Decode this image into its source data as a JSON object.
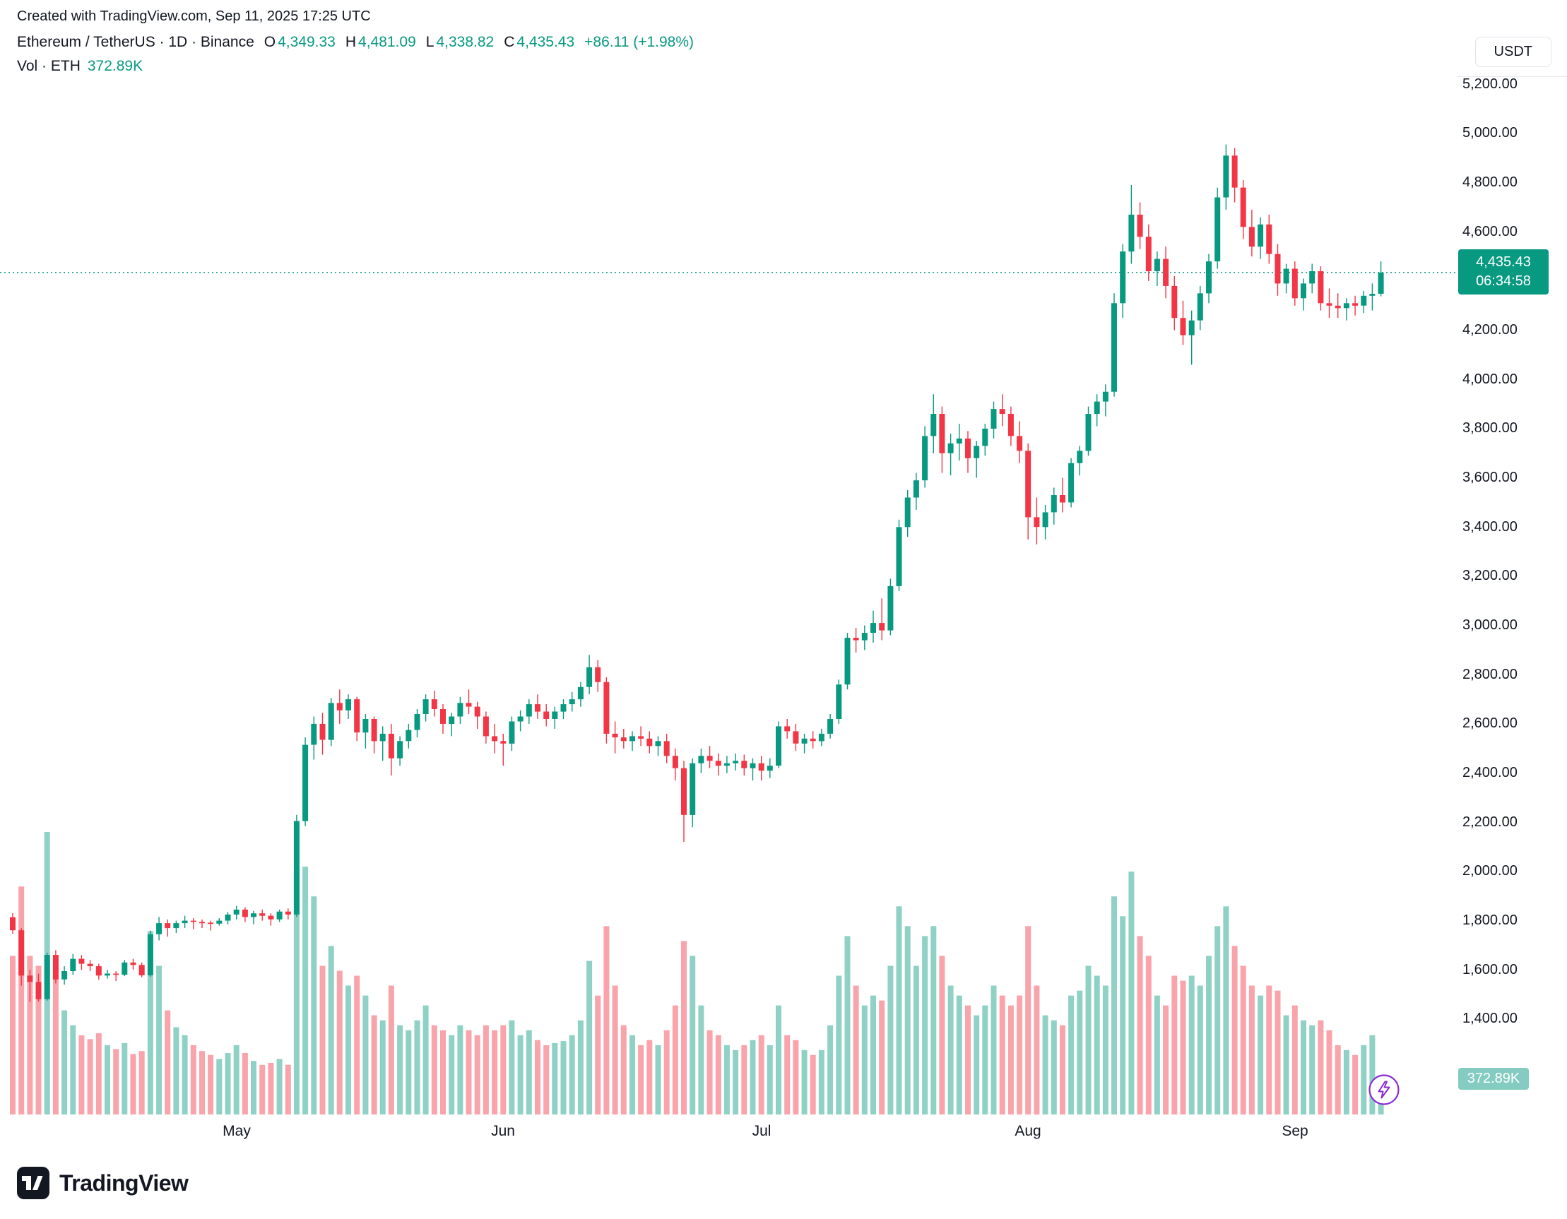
{
  "header": {
    "attribution": "Created with TradingView.com, Sep 11, 2025 17:25 UTC"
  },
  "legend": {
    "symbol_line": "Ethereum / TetherUS · 1D · Binance",
    "o_label": "O",
    "o_value": "4,349.33",
    "h_label": "H",
    "h_value": "4,481.09",
    "l_label": "L",
    "l_value": "4,338.82",
    "c_label": "C",
    "c_value": "4,435.43",
    "change": "+86.11 (+1.98%)",
    "vol_label": "Vol · ETH",
    "vol_value": "372.89K"
  },
  "axis": {
    "currency_button": "USDT",
    "price_badge": {
      "price": "4,435.43",
      "countdown": "06:34:58",
      "value": 4435.43
    },
    "volume_badge": "372.89K",
    "price_ticks": [
      {
        "label": "5,200.00",
        "value": 5200
      },
      {
        "label": "5,000.00",
        "value": 5000
      },
      {
        "label": "4,800.00",
        "value": 4800
      },
      {
        "label": "4,600.00",
        "value": 4600
      },
      {
        "label": "4,200.00",
        "value": 4200
      },
      {
        "label": "4,000.00",
        "value": 4000
      },
      {
        "label": "3,800.00",
        "value": 3800
      },
      {
        "label": "3,600.00",
        "value": 3600
      },
      {
        "label": "3,400.00",
        "value": 3400
      },
      {
        "label": "3,200.00",
        "value": 3200
      },
      {
        "label": "3,000.00",
        "value": 3000
      },
      {
        "label": "2,800.00",
        "value": 2800
      },
      {
        "label": "2,600.00",
        "value": 2600
      },
      {
        "label": "2,400.00",
        "value": 2400
      },
      {
        "label": "2,200.00",
        "value": 2200
      },
      {
        "label": "2,000.00",
        "value": 2000
      },
      {
        "label": "1,800.00",
        "value": 1800
      },
      {
        "label": "1,600.00",
        "value": 1600
      },
      {
        "label": "1,400.00",
        "value": 1400
      }
    ]
  },
  "chart_data": {
    "type": "candlestick",
    "symbol": "ETHUSDT",
    "interval": "1D",
    "ylim": [
      1400,
      5200
    ],
    "last_price": 4435.43,
    "x_ticks": [
      {
        "label": "May",
        "index": 26
      },
      {
        "label": "Jun",
        "index": 57
      },
      {
        "label": "Jul",
        "index": 87
      },
      {
        "label": "Aug",
        "index": 118
      },
      {
        "label": "Sep",
        "index": 149
      }
    ],
    "candles_format": [
      "open",
      "high",
      "low",
      "close",
      "volume_k_eth"
    ],
    "candles": [
      [
        1815,
        1832,
        1748,
        1762,
        1600
      ],
      [
        1762,
        1771,
        1537,
        1578,
        2300
      ],
      [
        1578,
        1601,
        1470,
        1552,
        1600
      ],
      [
        1552,
        1586,
        1472,
        1482,
        1500
      ],
      [
        1482,
        1671,
        1476,
        1662,
        2850
      ],
      [
        1662,
        1681,
        1546,
        1562,
        1400
      ],
      [
        1562,
        1616,
        1541,
        1596,
        1050
      ],
      [
        1596,
        1666,
        1581,
        1646,
        900
      ],
      [
        1646,
        1661,
        1601,
        1626,
        800
      ],
      [
        1626,
        1641,
        1596,
        1616,
        760
      ],
      [
        1616,
        1626,
        1561,
        1578,
        820
      ],
      [
        1578,
        1601,
        1566,
        1586,
        700
      ],
      [
        1586,
        1596,
        1556,
        1581,
        660
      ],
      [
        1581,
        1641,
        1576,
        1631,
        720
      ],
      [
        1631,
        1646,
        1601,
        1621,
        610
      ],
      [
        1621,
        1631,
        1571,
        1579,
        640
      ],
      [
        1579,
        1761,
        1573,
        1746,
        1850
      ],
      [
        1746,
        1816,
        1721,
        1791,
        1500
      ],
      [
        1791,
        1806,
        1736,
        1771,
        1050
      ],
      [
        1771,
        1801,
        1751,
        1791,
        880
      ],
      [
        1791,
        1821,
        1771,
        1801,
        800
      ],
      [
        1801,
        1811,
        1766,
        1796,
        700
      ],
      [
        1796,
        1806,
        1771,
        1793,
        640
      ],
      [
        1793,
        1801,
        1761,
        1789,
        600
      ],
      [
        1789,
        1811,
        1781,
        1801,
        560
      ],
      [
        1801,
        1836,
        1786,
        1826,
        620
      ],
      [
        1826,
        1861,
        1806,
        1846,
        700
      ],
      [
        1846,
        1856,
        1796,
        1816,
        620
      ],
      [
        1816,
        1841,
        1786,
        1831,
        540
      ],
      [
        1831,
        1846,
        1801,
        1821,
        500
      ],
      [
        1821,
        1831,
        1781,
        1806,
        520
      ],
      [
        1806,
        1846,
        1796,
        1838,
        560
      ],
      [
        1838,
        1851,
        1806,
        1826,
        500
      ],
      [
        1826,
        2231,
        1816,
        2206,
        2400
      ],
      [
        2206,
        2546,
        2186,
        2516,
        2500
      ],
      [
        2516,
        2631,
        2456,
        2601,
        2200
      ],
      [
        2601,
        2646,
        2476,
        2536,
        1500
      ],
      [
        2536,
        2706,
        2511,
        2686,
        1700
      ],
      [
        2686,
        2741,
        2601,
        2656,
        1450
      ],
      [
        2656,
        2721,
        2621,
        2701,
        1300
      ],
      [
        2701,
        2711,
        2531,
        2566,
        1400
      ],
      [
        2566,
        2641,
        2501,
        2621,
        1200
      ],
      [
        2621,
        2631,
        2481,
        2531,
        1000
      ],
      [
        2531,
        2591,
        2451,
        2561,
        950
      ],
      [
        2561,
        2601,
        2391,
        2461,
        1300
      ],
      [
        2461,
        2551,
        2431,
        2531,
        900
      ],
      [
        2531,
        2601,
        2501,
        2576,
        850
      ],
      [
        2576,
        2661,
        2546,
        2641,
        950
      ],
      [
        2641,
        2721,
        2611,
        2701,
        1100
      ],
      [
        2701,
        2736,
        2631,
        2661,
        900
      ],
      [
        2661,
        2681,
        2561,
        2601,
        850
      ],
      [
        2601,
        2646,
        2551,
        2631,
        800
      ],
      [
        2631,
        2711,
        2601,
        2686,
        900
      ],
      [
        2686,
        2741,
        2641,
        2671,
        850
      ],
      [
        2671,
        2691,
        2581,
        2631,
        800
      ],
      [
        2631,
        2651,
        2521,
        2551,
        900
      ],
      [
        2551,
        2601,
        2481,
        2531,
        850
      ],
      [
        2531,
        2561,
        2431,
        2521,
        900
      ],
      [
        2521,
        2631,
        2491,
        2611,
        950
      ],
      [
        2611,
        2656,
        2571,
        2631,
        800
      ],
      [
        2631,
        2701,
        2601,
        2681,
        850
      ],
      [
        2681,
        2721,
        2621,
        2651,
        750
      ],
      [
        2651,
        2681,
        2591,
        2621,
        700
      ],
      [
        2621,
        2671,
        2581,
        2651,
        720
      ],
      [
        2651,
        2701,
        2621,
        2681,
        740
      ],
      [
        2681,
        2731,
        2651,
        2701,
        800
      ],
      [
        2701,
        2771,
        2671,
        2751,
        950
      ],
      [
        2751,
        2881,
        2721,
        2831,
        1550
      ],
      [
        2831,
        2861,
        2731,
        2771,
        1200
      ],
      [
        2771,
        2791,
        2521,
        2561,
        1900
      ],
      [
        2561,
        2611,
        2481,
        2546,
        1300
      ],
      [
        2546,
        2581,
        2501,
        2531,
        900
      ],
      [
        2531,
        2571,
        2491,
        2551,
        800
      ],
      [
        2551,
        2591,
        2511,
        2541,
        700
      ],
      [
        2541,
        2571,
        2481,
        2511,
        750
      ],
      [
        2511,
        2551,
        2471,
        2531,
        700
      ],
      [
        2531,
        2561,
        2441,
        2471,
        850
      ],
      [
        2471,
        2501,
        2371,
        2421,
        1100
      ],
      [
        2421,
        2451,
        2121,
        2231,
        1750
      ],
      [
        2231,
        2461,
        2181,
        2441,
        1600
      ],
      [
        2441,
        2501,
        2401,
        2471,
        1100
      ],
      [
        2471,
        2511,
        2421,
        2451,
        850
      ],
      [
        2451,
        2481,
        2391,
        2431,
        800
      ],
      [
        2431,
        2471,
        2401,
        2441,
        700
      ],
      [
        2441,
        2481,
        2411,
        2451,
        650
      ],
      [
        2451,
        2476,
        2391,
        2421,
        700
      ],
      [
        2421,
        2461,
        2371,
        2441,
        750
      ],
      [
        2441,
        2471,
        2371,
        2411,
        800
      ],
      [
        2411,
        2461,
        2381,
        2431,
        700
      ],
      [
        2431,
        2611,
        2421,
        2591,
        1100
      ],
      [
        2591,
        2621,
        2541,
        2571,
        800
      ],
      [
        2571,
        2601,
        2491,
        2521,
        750
      ],
      [
        2521,
        2561,
        2481,
        2541,
        650
      ],
      [
        2541,
        2571,
        2501,
        2531,
        600
      ],
      [
        2531,
        2581,
        2511,
        2561,
        650
      ],
      [
        2561,
        2641,
        2541,
        2621,
        900
      ],
      [
        2621,
        2781,
        2601,
        2761,
        1400
      ],
      [
        2761,
        2971,
        2741,
        2951,
        1800
      ],
      [
        2951,
        2991,
        2891,
        2941,
        1300
      ],
      [
        2941,
        3001,
        2901,
        2971,
        1100
      ],
      [
        2971,
        3061,
        2931,
        3011,
        1200
      ],
      [
        3011,
        3111,
        2941,
        2981,
        1150
      ],
      [
        2981,
        3191,
        2961,
        3161,
        1500
      ],
      [
        3161,
        3431,
        3141,
        3401,
        2100
      ],
      [
        3401,
        3551,
        3361,
        3521,
        1900
      ],
      [
        3521,
        3621,
        3471,
        3591,
        1500
      ],
      [
        3591,
        3811,
        3561,
        3771,
        1800
      ],
      [
        3771,
        3941,
        3701,
        3861,
        1900
      ],
      [
        3861,
        3891,
        3621,
        3701,
        1600
      ],
      [
        3701,
        3781,
        3611,
        3741,
        1300
      ],
      [
        3741,
        3821,
        3671,
        3761,
        1200
      ],
      [
        3761,
        3791,
        3621,
        3681,
        1100
      ],
      [
        3681,
        3751,
        3601,
        3731,
        1000
      ],
      [
        3731,
        3821,
        3691,
        3801,
        1100
      ],
      [
        3801,
        3911,
        3761,
        3881,
        1300
      ],
      [
        3881,
        3941,
        3811,
        3861,
        1200
      ],
      [
        3861,
        3891,
        3731,
        3771,
        1100
      ],
      [
        3771,
        3831,
        3661,
        3711,
        1200
      ],
      [
        3711,
        3741,
        3351,
        3441,
        1900
      ],
      [
        3441,
        3521,
        3331,
        3401,
        1300
      ],
      [
        3401,
        3491,
        3351,
        3461,
        1000
      ],
      [
        3461,
        3561,
        3411,
        3531,
        950
      ],
      [
        3531,
        3601,
        3461,
        3501,
        900
      ],
      [
        3501,
        3681,
        3481,
        3661,
        1200
      ],
      [
        3661,
        3731,
        3611,
        3711,
        1250
      ],
      [
        3711,
        3891,
        3691,
        3861,
        1500
      ],
      [
        3861,
        3941,
        3811,
        3911,
        1400
      ],
      [
        3911,
        3981,
        3851,
        3951,
        1300
      ],
      [
        3951,
        4351,
        3931,
        4311,
        2200
      ],
      [
        4311,
        4551,
        4251,
        4521,
        2000
      ],
      [
        4521,
        4791,
        4471,
        4671,
        2450
      ],
      [
        4671,
        4721,
        4531,
        4581,
        1800
      ],
      [
        4581,
        4631,
        4401,
        4441,
        1600
      ],
      [
        4441,
        4521,
        4381,
        4491,
        1200
      ],
      [
        4491,
        4541,
        4331,
        4381,
        1100
      ],
      [
        4381,
        4421,
        4201,
        4251,
        1400
      ],
      [
        4251,
        4321,
        4141,
        4181,
        1350
      ],
      [
        4181,
        4281,
        4061,
        4241,
        1400
      ],
      [
        4241,
        4381,
        4201,
        4351,
        1300
      ],
      [
        4351,
        4511,
        4311,
        4481,
        1600
      ],
      [
        4481,
        4781,
        4451,
        4741,
        1900
      ],
      [
        4741,
        4956,
        4691,
        4911,
        2100
      ],
      [
        4911,
        4941,
        4721,
        4781,
        1700
      ],
      [
        4781,
        4811,
        4571,
        4621,
        1500
      ],
      [
        4621,
        4691,
        4501,
        4541,
        1300
      ],
      [
        4541,
        4661,
        4491,
        4631,
        1200
      ],
      [
        4631,
        4671,
        4471,
        4511,
        1300
      ],
      [
        4511,
        4551,
        4341,
        4391,
        1250
      ],
      [
        4391,
        4471,
        4351,
        4451,
        1000
      ],
      [
        4451,
        4481,
        4301,
        4331,
        1100
      ],
      [
        4331,
        4411,
        4281,
        4391,
        950
      ],
      [
        4391,
        4471,
        4351,
        4441,
        900
      ],
      [
        4441,
        4461,
        4281,
        4311,
        950
      ],
      [
        4311,
        4371,
        4251,
        4301,
        850
      ],
      [
        4301,
        4351,
        4251,
        4291,
        700
      ],
      [
        4291,
        4331,
        4241,
        4311,
        650
      ],
      [
        4311,
        4341,
        4261,
        4301,
        600
      ],
      [
        4301,
        4361,
        4271,
        4341,
        700
      ],
      [
        4341,
        4391,
        4281,
        4349,
        800
      ],
      [
        4349.33,
        4481.09,
        4338.82,
        4435.43,
        373
      ]
    ]
  },
  "footer": {
    "logo_text": "TradingView"
  },
  "colors": {
    "up": "#089981",
    "down": "#F23645",
    "badge_bg": "#089981",
    "vol_badge_bg": "#84ccc1",
    "accent_purple": "#8c2bd6",
    "text": "#131722"
  }
}
